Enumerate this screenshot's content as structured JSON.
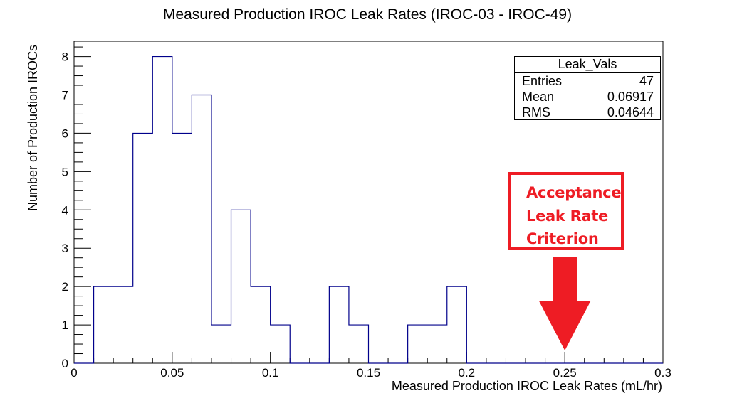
{
  "chart_data": {
    "type": "bar",
    "histogram": true,
    "title": "Measured Production IROC Leak Rates (IROC-03 - IROC-49)",
    "xlabel": "Measured Production IROC Leak Rates (mL/hr)",
    "ylabel": "Number of Production IROCs",
    "xlim": [
      0,
      0.3
    ],
    "ylim": [
      0,
      8.4
    ],
    "bin_width": 0.01,
    "bin_edges": [
      0,
      0.01,
      0.02,
      0.03,
      0.04,
      0.05,
      0.06,
      0.07,
      0.08,
      0.09,
      0.1,
      0.11,
      0.12,
      0.13,
      0.14,
      0.15,
      0.16,
      0.17,
      0.18,
      0.19,
      0.2,
      0.21,
      0.22,
      0.23,
      0.24,
      0.25,
      0.26,
      0.27,
      0.28,
      0.29,
      0.3
    ],
    "values": [
      0,
      2,
      2,
      6,
      8,
      6,
      7,
      1,
      4,
      2,
      1,
      0,
      0,
      2,
      1,
      0,
      0,
      1,
      1,
      2,
      0,
      0,
      0,
      0,
      0,
      0,
      0,
      0,
      0,
      0
    ],
    "x_ticks": [
      "0",
      "0.05",
      "0.1",
      "0.15",
      "0.2",
      "0.25",
      "0.3"
    ],
    "x_tick_values": [
      0,
      0.05,
      0.1,
      0.15,
      0.2,
      0.25,
      0.3
    ],
    "y_ticks": [
      "0",
      "1",
      "2",
      "3",
      "4",
      "5",
      "6",
      "7",
      "8"
    ],
    "y_tick_values": [
      0,
      1,
      2,
      3,
      4,
      5,
      6,
      7,
      8
    ],
    "line_color": "#00008b",
    "grid": false,
    "stats_box": {
      "title": "Leak_Vals",
      "rows": [
        {
          "label": "Entries",
          "value": "47"
        },
        {
          "label": "Mean",
          "value": "0.06917"
        },
        {
          "label": "RMS",
          "value": "0.04644"
        }
      ],
      "placement": "top-right"
    },
    "annotation": {
      "lines": [
        "Acceptance",
        "Leak Rate",
        "Criterion"
      ],
      "arrow_x": 0.25,
      "color": "#ee1c24"
    }
  }
}
